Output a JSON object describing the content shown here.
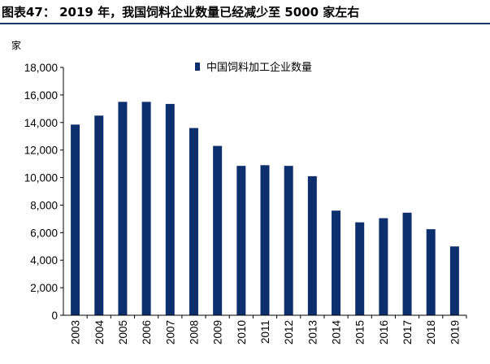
{
  "header": {
    "title": "图表47：  2019 年，我国饲料企业数量已经减少至 5000 家左右"
  },
  "colors": {
    "bar": "#0d2f6e",
    "rule": "#1a3a6b"
  },
  "chart_data": {
    "type": "bar",
    "title": "",
    "xlabel": "",
    "ylabel": "家",
    "ylim": [
      0,
      18000
    ],
    "yticks": [
      0,
      2000,
      4000,
      6000,
      8000,
      10000,
      12000,
      14000,
      16000,
      18000
    ],
    "ytick_labels": [
      "0",
      "2,000",
      "4,000",
      "6,000",
      "8,000",
      "10,000",
      "12,000",
      "14,000",
      "16,000",
      "18,000"
    ],
    "grid": false,
    "legend_position": "top-center",
    "categories": [
      "2003",
      "2004",
      "2005",
      "2006",
      "2007",
      "2008",
      "2009",
      "2010",
      "2011",
      "2012",
      "2013",
      "2014",
      "2015",
      "2016",
      "2017",
      "2018",
      "2019"
    ],
    "series": [
      {
        "name": "中国饲料加工企业数量",
        "values": [
          13850,
          14500,
          15500,
          15500,
          15350,
          13600,
          12300,
          10850,
          10900,
          10850,
          10100,
          7600,
          6750,
          7050,
          7450,
          6250,
          5000
        ]
      }
    ]
  }
}
